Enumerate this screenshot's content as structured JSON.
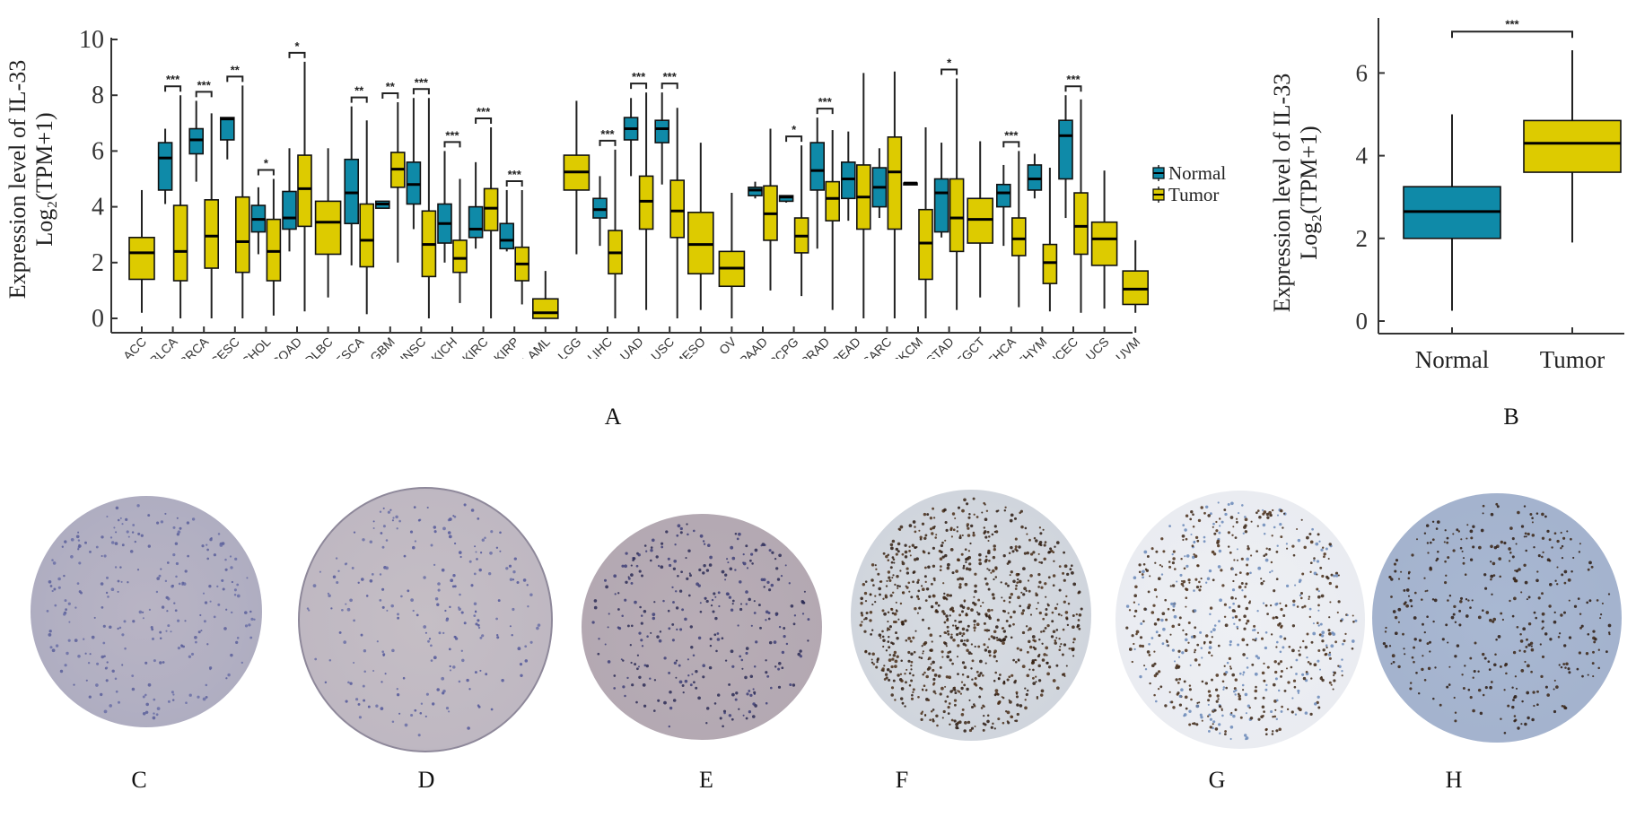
{
  "colors": {
    "normal": "#0f8aa8",
    "tumor": "#ddcb00",
    "outline": "#111111",
    "outlier": "#9a9a9a"
  },
  "chart_data": [
    {
      "panel": "A",
      "type": "box",
      "ylabel_line1": "Expression level of IL-33",
      "ylabel_line2": "Log₂(TPM+1)",
      "ylim": [
        0,
        10
      ],
      "yticks": [
        0,
        2,
        4,
        6,
        8,
        10
      ],
      "legend": {
        "position": "right",
        "entries": [
          "Normal",
          "Tumor"
        ]
      },
      "categories": [
        "ACC",
        "BLCA",
        "BRCA",
        "CESC",
        "CHOL",
        "COAD",
        "DLBC",
        "ESCA",
        "GBM",
        "HNSC",
        "KICH",
        "KIRC",
        "KIRP",
        "LAML",
        "LGG",
        "LIHC",
        "LUAD",
        "LUSC",
        "MESO",
        "OV",
        "PAAD",
        "PCPG",
        "PRAD",
        "READ",
        "SARC",
        "SKCM",
        "STAD",
        "TGCT",
        "THCA",
        "THYM",
        "UCEC",
        "UCS",
        "UVM"
      ],
      "series": [
        {
          "name": "Normal",
          "boxes": [
            null,
            {
              "min": 4.1,
              "q1": 4.6,
              "median": 5.75,
              "q3": 6.3,
              "max": 6.8
            },
            {
              "min": 4.9,
              "q1": 5.9,
              "median": 6.4,
              "q3": 6.8,
              "max": 7.8
            },
            {
              "min": 5.7,
              "q1": 6.4,
              "median": 7.15,
              "q3": 7.2,
              "max": 7.2
            },
            {
              "min": 2.3,
              "q1": 3.1,
              "median": 3.55,
              "q3": 4.05,
              "max": 4.7
            },
            {
              "min": 2.4,
              "q1": 3.2,
              "median": 3.6,
              "q3": 4.55,
              "max": 6.1
            },
            null,
            {
              "min": 1.9,
              "q1": 3.4,
              "median": 4.5,
              "q3": 5.7,
              "max": 7.6
            },
            {
              "min": 3.95,
              "q1": 3.95,
              "median": 4.1,
              "q3": 4.2,
              "max": 4.2
            },
            {
              "min": 3.2,
              "q1": 4.1,
              "median": 4.8,
              "q3": 5.6,
              "max": 7.9
            },
            {
              "min": 2.0,
              "q1": 2.7,
              "median": 3.4,
              "q3": 4.1,
              "max": 6.0
            },
            {
              "min": 2.5,
              "q1": 2.9,
              "median": 3.2,
              "q3": 4.0,
              "max": 5.6
            },
            {
              "min": 2.4,
              "q1": 2.5,
              "median": 2.8,
              "q3": 3.4,
              "max": 4.6
            },
            null,
            null,
            {
              "min": 2.6,
              "q1": 3.6,
              "median": 3.9,
              "q3": 4.3,
              "max": 5.1
            },
            {
              "min": 5.1,
              "q1": 6.4,
              "median": 6.8,
              "q3": 7.2,
              "max": 7.9
            },
            {
              "min": 4.8,
              "q1": 6.3,
              "median": 6.8,
              "q3": 7.1,
              "max": 8.1
            },
            null,
            null,
            {
              "min": 4.3,
              "q1": 4.4,
              "median": 4.6,
              "q3": 4.7,
              "max": 4.9
            },
            {
              "min": 4.15,
              "q1": 4.2,
              "median": 4.35,
              "q3": 4.4,
              "max": 4.4
            },
            {
              "min": 2.5,
              "q1": 4.6,
              "median": 5.3,
              "q3": 6.3,
              "max": 7.2
            },
            {
              "min": 3.5,
              "q1": 4.3,
              "median": 5.0,
              "q3": 5.6,
              "max": 6.7
            },
            {
              "min": 3.6,
              "q1": 4.0,
              "median": 4.7,
              "q3": 5.4,
              "max": 6.1
            },
            {
              "min": 4.85,
              "q1": 4.85,
              "median": 4.85,
              "q3": 4.85,
              "max": 4.85
            },
            {
              "min": 2.9,
              "q1": 3.1,
              "median": 4.5,
              "q3": 5.0,
              "max": 6.3
            },
            null,
            {
              "min": 2.6,
              "q1": 4.0,
              "median": 4.5,
              "q3": 4.8,
              "max": 5.5
            },
            {
              "min": 4.3,
              "q1": 4.6,
              "median": 5.0,
              "q3": 5.5,
              "max": 5.9
            },
            {
              "min": 3.6,
              "q1": 5.0,
              "median": 6.55,
              "q3": 7.1,
              "max": 8.0
            },
            null,
            null
          ]
        },
        {
          "name": "Tumor",
          "boxes": [
            {
              "min": 0.2,
              "q1": 1.4,
              "median": 2.35,
              "q3": 2.9,
              "max": 4.6
            },
            {
              "min": 0.0,
              "q1": 1.35,
              "median": 2.4,
              "q3": 4.05,
              "max": 8.0
            },
            {
              "min": 0.0,
              "q1": 1.8,
              "median": 2.95,
              "q3": 4.25,
              "max": 7.35
            },
            {
              "min": 0.0,
              "q1": 1.65,
              "median": 2.75,
              "q3": 4.35,
              "max": 8.35
            },
            {
              "min": 0.1,
              "q1": 1.35,
              "median": 2.4,
              "q3": 3.55,
              "max": 5.0
            },
            {
              "min": 0.25,
              "q1": 3.3,
              "median": 4.65,
              "q3": 5.85,
              "max": 9.2
            },
            {
              "min": 0.75,
              "q1": 2.3,
              "median": 3.45,
              "q3": 4.2,
              "max": 6.1
            },
            {
              "min": 0.15,
              "q1": 1.85,
              "median": 2.8,
              "q3": 4.1,
              "max": 7.1
            },
            {
              "min": 2.0,
              "q1": 4.7,
              "median": 5.35,
              "q3": 5.95,
              "max": 7.75
            },
            {
              "min": 0.0,
              "q1": 1.5,
              "median": 2.65,
              "q3": 3.85,
              "max": 7.9
            },
            {
              "min": 0.55,
              "q1": 1.65,
              "median": 2.15,
              "q3": 2.8,
              "max": 5.0
            },
            {
              "min": 0.0,
              "q1": 3.15,
              "median": 3.95,
              "q3": 4.65,
              "max": 6.85
            },
            {
              "min": 0.5,
              "q1": 1.35,
              "median": 1.95,
              "q3": 2.55,
              "max": 4.6
            },
            {
              "min": 0.0,
              "q1": 0.0,
              "median": 0.2,
              "q3": 0.7,
              "max": 1.7
            },
            {
              "min": 2.3,
              "q1": 4.6,
              "median": 5.25,
              "q3": 5.85,
              "max": 7.8
            },
            {
              "min": 0.0,
              "q1": 1.6,
              "median": 2.35,
              "q3": 3.15,
              "max": 6.05
            },
            {
              "min": 0.3,
              "q1": 3.2,
              "median": 4.2,
              "q3": 5.1,
              "max": 8.1
            },
            {
              "min": 0.0,
              "q1": 2.9,
              "median": 3.85,
              "q3": 4.95,
              "max": 7.55
            },
            {
              "min": 0.3,
              "q1": 1.6,
              "median": 2.65,
              "q3": 3.8,
              "max": 6.3
            },
            {
              "min": 0.0,
              "q1": 1.15,
              "median": 1.8,
              "q3": 2.4,
              "max": 4.5
            },
            {
              "min": 1.0,
              "q1": 2.8,
              "median": 3.75,
              "q3": 4.75,
              "max": 6.8
            },
            {
              "min": 0.8,
              "q1": 2.35,
              "median": 2.95,
              "q3": 3.6,
              "max": 6.2
            },
            {
              "min": 0.3,
              "q1": 3.5,
              "median": 4.3,
              "q3": 4.9,
              "max": 6.75
            },
            {
              "min": 0.0,
              "q1": 3.2,
              "median": 4.35,
              "q3": 5.5,
              "max": 8.8
            },
            {
              "min": 0.0,
              "q1": 3.2,
              "median": 5.25,
              "q3": 6.5,
              "max": 8.85
            },
            {
              "min": 0.0,
              "q1": 1.4,
              "median": 2.7,
              "q3": 3.9,
              "max": 6.85
            },
            {
              "min": 0.3,
              "q1": 2.4,
              "median": 3.6,
              "q3": 5.0,
              "max": 8.6
            },
            {
              "min": 0.75,
              "q1": 2.7,
              "median": 3.55,
              "q3": 4.3,
              "max": 6.35
            },
            {
              "min": 0.4,
              "q1": 2.25,
              "median": 2.85,
              "q3": 3.6,
              "max": 6.0
            },
            {
              "min": 0.25,
              "q1": 1.25,
              "median": 2.0,
              "q3": 2.65,
              "max": 5.4
            },
            {
              "min": 0.2,
              "q1": 2.3,
              "median": 3.3,
              "q3": 4.5,
              "max": 7.85
            },
            {
              "min": 0.35,
              "q1": 1.9,
              "median": 2.85,
              "q3": 3.45,
              "max": 5.3
            },
            {
              "min": 0.2,
              "q1": 0.5,
              "median": 1.05,
              "q3": 1.7,
              "max": 2.8
            }
          ]
        }
      ],
      "significance": [
        "",
        "***",
        "***",
        "**",
        "*",
        "*",
        "",
        "**",
        "**",
        "***",
        "***",
        "***",
        "***",
        "",
        "",
        "***",
        "***",
        "***",
        "",
        "",
        "",
        "*",
        "***",
        "",
        "",
        "",
        "*",
        "",
        "***",
        "",
        "***",
        "",
        ""
      ]
    },
    {
      "panel": "B",
      "type": "box",
      "ylabel_line1": "Expression level of IL-33",
      "ylabel_line2": "Log₂(TPM+1)",
      "ylim": [
        0,
        7.4
      ],
      "yticks": [
        0,
        2,
        4,
        6
      ],
      "categories": [
        "Normal",
        "Tumor"
      ],
      "boxes": [
        {
          "min": 0.25,
          "q1": 2.0,
          "median": 2.65,
          "q3": 3.25,
          "max": 5.0
        },
        {
          "min": 1.9,
          "q1": 3.6,
          "median": 4.3,
          "q3": 4.85,
          "max": 6.55
        }
      ],
      "significance": "***"
    }
  ],
  "panels": {
    "A": "A",
    "B": "B",
    "C": "C",
    "D": "D",
    "E": "E",
    "F": "F",
    "G": "G",
    "H": "H"
  }
}
